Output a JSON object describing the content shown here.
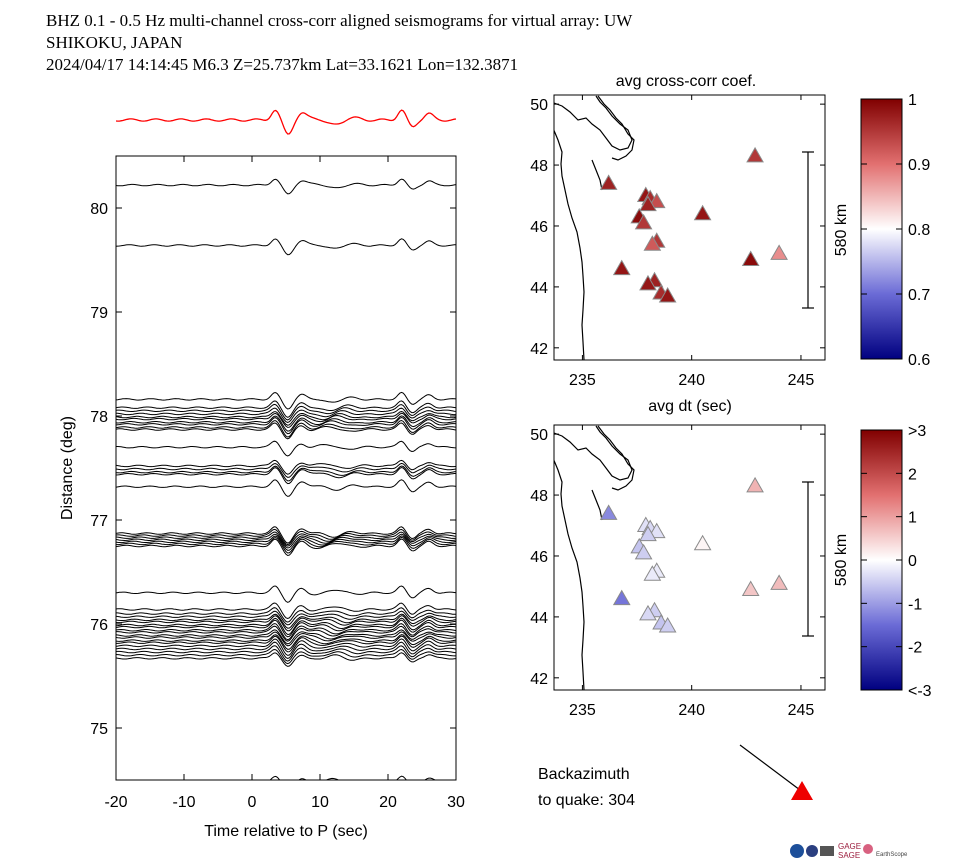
{
  "header": {
    "line1": "BHZ  0.1 - 0.5 Hz  multi-channel cross-corr aligned seismograms for virtual array: UW",
    "line2": "SHIKOKU, JAPAN",
    "line3": "2024/04/17  14:14:45  M6.3  Z=25.737km Lat=33.1621 Lon=132.3871"
  },
  "chart_data": [
    {
      "type": "line",
      "name": "seismogram-section",
      "xlabel": "Time relative to P (sec)",
      "ylabel": "Distance (deg)",
      "xlim": [
        -20,
        30
      ],
      "ylim": [
        74.5,
        80.5
      ],
      "xticks": [
        "-20",
        "-10",
        "0",
        "10",
        "20",
        "30"
      ],
      "yticks": [
        "75",
        "76",
        "77",
        "78",
        "79",
        "80"
      ],
      "stack_trace_color": "#ff0000",
      "trace_color": "#000000",
      "trace_distances": [
        80.22,
        79.64,
        78.16,
        78.08,
        78.05,
        78.02,
        77.99,
        77.97,
        77.94,
        77.92,
        77.89,
        77.87,
        77.7,
        77.52,
        77.49,
        77.46,
        77.44,
        77.32,
        76.87,
        76.85,
        76.83,
        76.81,
        76.79,
        76.77,
        76.75,
        76.3,
        76.14,
        76.1,
        76.07,
        76.04,
        76.02,
        75.99,
        75.97,
        75.94,
        75.92,
        75.89,
        75.87,
        75.84,
        75.82,
        75.79,
        75.76,
        75.73,
        75.7,
        75.67,
        74.48
      ]
    },
    {
      "type": "scatter",
      "name": "cross-corr-map",
      "title": "avg cross-corr coef.",
      "xlabel": "avg dt (sec)",
      "xlim": [
        233.7,
        246.1
      ],
      "ylim": [
        41.6,
        50.3
      ],
      "xticks": [
        "235",
        "240",
        "245"
      ],
      "yticks": [
        "42",
        "44",
        "46",
        "48",
        "50"
      ],
      "scale_bar": "580 km",
      "colorbar": {
        "min": 0.6,
        "max": 1,
        "ticks": [
          "0.6",
          "0.7",
          "0.8",
          "0.9",
          "1"
        ]
      },
      "points": [
        {
          "lon": 236.2,
          "lat": 47.4,
          "value": 0.97
        },
        {
          "lon": 242.9,
          "lat": 48.3,
          "value": 0.95
        },
        {
          "lon": 237.9,
          "lat": 47.0,
          "value": 0.98
        },
        {
          "lon": 238.1,
          "lat": 46.9,
          "value": 0.96
        },
        {
          "lon": 238.4,
          "lat": 46.8,
          "value": 0.93
        },
        {
          "lon": 238.0,
          "lat": 46.7,
          "value": 0.97
        },
        {
          "lon": 240.5,
          "lat": 46.4,
          "value": 0.98
        },
        {
          "lon": 237.6,
          "lat": 46.3,
          "value": 0.99
        },
        {
          "lon": 237.8,
          "lat": 46.1,
          "value": 0.95
        },
        {
          "lon": 238.4,
          "lat": 45.5,
          "value": 0.95
        },
        {
          "lon": 238.2,
          "lat": 45.4,
          "value": 0.92
        },
        {
          "lon": 236.8,
          "lat": 44.6,
          "value": 0.98
        },
        {
          "lon": 242.7,
          "lat": 44.9,
          "value": 0.99
        },
        {
          "lon": 244.0,
          "lat": 45.1,
          "value": 0.88
        },
        {
          "lon": 238.3,
          "lat": 44.2,
          "value": 0.97
        },
        {
          "lon": 238.0,
          "lat": 44.1,
          "value": 0.98
        },
        {
          "lon": 238.6,
          "lat": 43.8,
          "value": 0.96
        },
        {
          "lon": 238.9,
          "lat": 43.7,
          "value": 0.98
        }
      ]
    },
    {
      "type": "scatter",
      "name": "dt-map",
      "xlim": [
        233.7,
        246.1
      ],
      "ylim": [
        41.6,
        50.3
      ],
      "xticks": [
        "235",
        "240",
        "245"
      ],
      "yticks": [
        "42",
        "44",
        "46",
        "48",
        "50"
      ],
      "scale_bar": "580 km",
      "colorbar": {
        "min": -3,
        "max": 3,
        "ticks": [
          ">3",
          "2",
          "1",
          "0",
          "-1",
          "-2",
          "<-3"
        ]
      },
      "points": [
        {
          "lon": 236.2,
          "lat": 47.4,
          "value": -1.2
        },
        {
          "lon": 242.9,
          "lat": 48.3,
          "value": 0.8
        },
        {
          "lon": 237.9,
          "lat": 47.0,
          "value": -0.3
        },
        {
          "lon": 238.1,
          "lat": 46.9,
          "value": -0.4
        },
        {
          "lon": 238.4,
          "lat": 46.8,
          "value": -0.3
        },
        {
          "lon": 238.0,
          "lat": 46.7,
          "value": -0.5
        },
        {
          "lon": 240.5,
          "lat": 46.4,
          "value": 0.1
        },
        {
          "lon": 237.6,
          "lat": 46.3,
          "value": -0.6
        },
        {
          "lon": 237.8,
          "lat": 46.1,
          "value": -0.5
        },
        {
          "lon": 238.4,
          "lat": 45.5,
          "value": -0.2
        },
        {
          "lon": 238.2,
          "lat": 45.4,
          "value": -0.2
        },
        {
          "lon": 236.8,
          "lat": 44.6,
          "value": -1.4
        },
        {
          "lon": 242.7,
          "lat": 44.9,
          "value": 0.6
        },
        {
          "lon": 244.0,
          "lat": 45.1,
          "value": 0.7
        },
        {
          "lon": 238.3,
          "lat": 44.2,
          "value": -0.5
        },
        {
          "lon": 238.0,
          "lat": 44.1,
          "value": -0.4
        },
        {
          "lon": 238.6,
          "lat": 43.8,
          "value": -0.6
        },
        {
          "lon": 238.9,
          "lat": 43.7,
          "value": -0.5
        }
      ]
    }
  ],
  "backazimuth": {
    "label_line1": "Backazimuth",
    "label_line2": "to quake:  304",
    "value": 304
  },
  "logos": {
    "text1": "GAGE",
    "text2": "SAGE",
    "text3": "EarthScope"
  },
  "colors": {
    "arrow": "#ee0000",
    "stack": "#ff0000"
  }
}
